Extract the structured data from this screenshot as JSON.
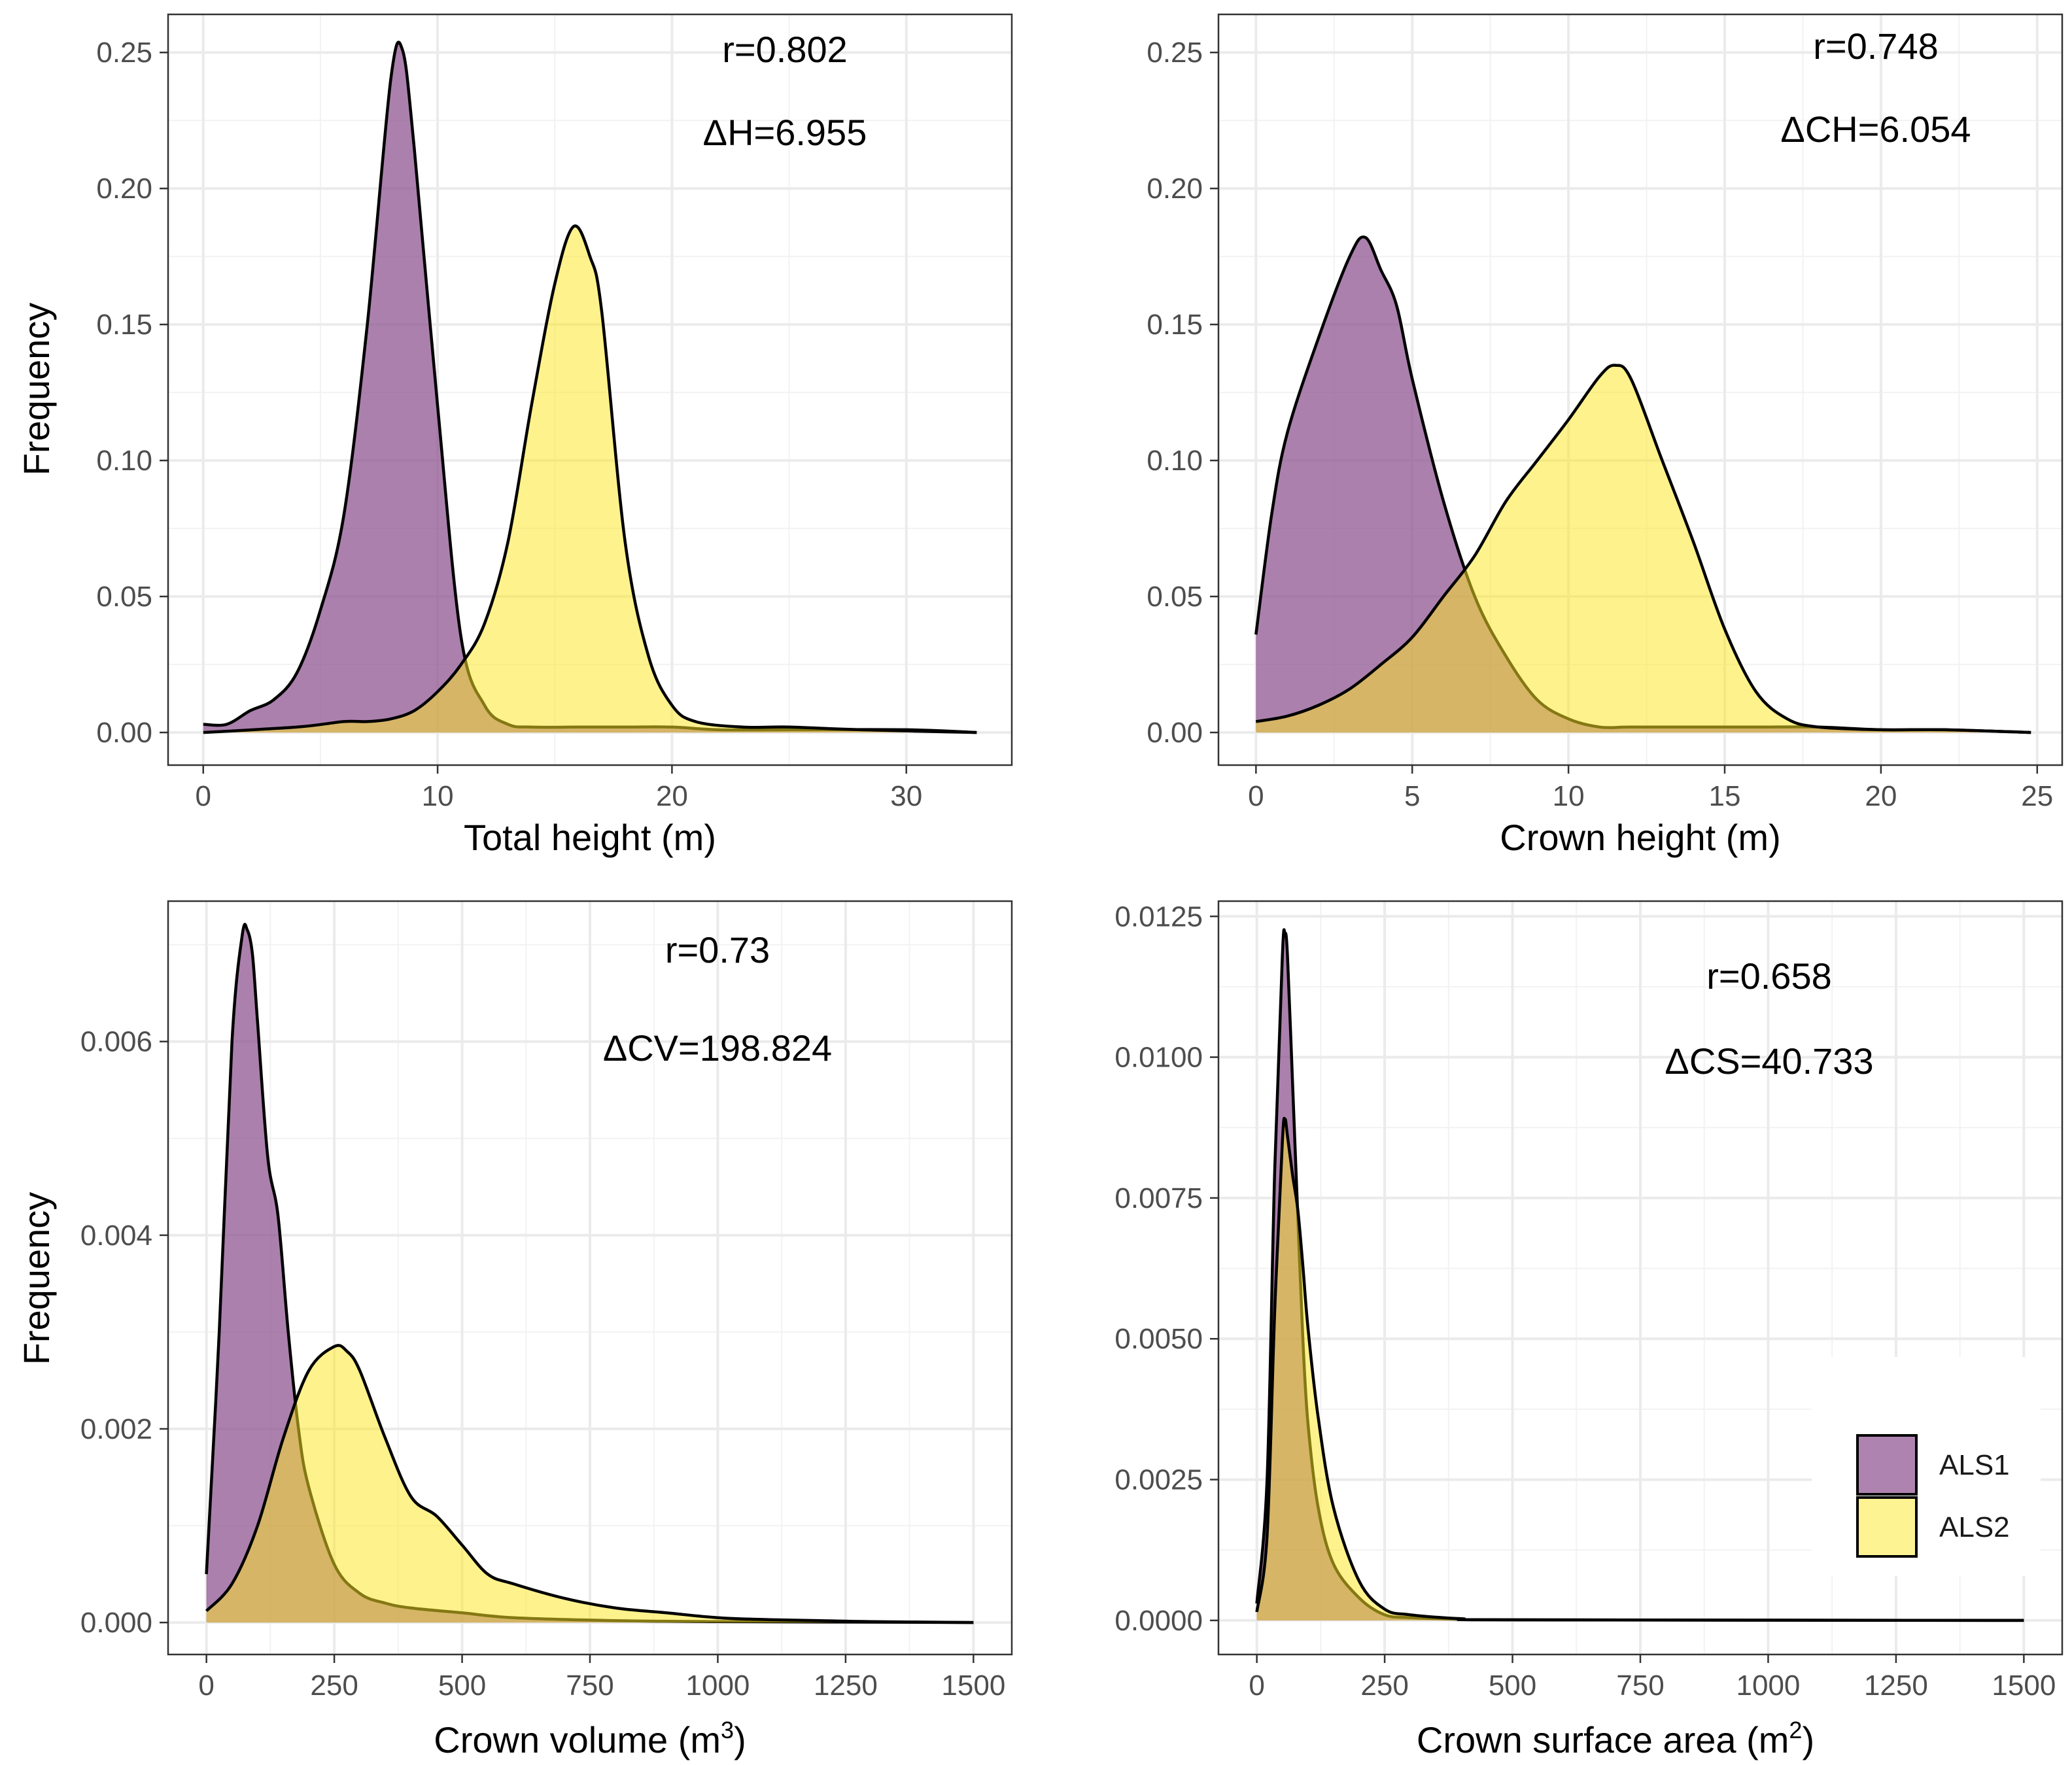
{
  "figure": {
    "legend": {
      "entries": [
        {
          "label": "ALS1",
          "color": "#8B4F8E"
        },
        {
          "label": "ALS2",
          "color": "#FDE725"
        }
      ]
    }
  },
  "chart_data": [
    {
      "type": "area",
      "name": "total-height",
      "xlabel": "Total height (m)",
      "ylabel": "Frequency",
      "xlim": [
        -1.5,
        34.5
      ],
      "ylim": [
        -0.012,
        0.264
      ],
      "xticks": [
        0,
        10,
        20,
        30
      ],
      "xtick_labels": [
        "0",
        "10",
        "20",
        "30"
      ],
      "yticks": [
        0,
        0.05,
        0.1,
        0.15,
        0.2,
        0.25
      ],
      "ytick_labels": [
        "0.00",
        "0.05",
        "0.10",
        "0.15",
        "0.20",
        "0.25"
      ],
      "annotations": [
        "r=0.802",
        "ΔH=6.955"
      ],
      "series": [
        {
          "name": "ALS1",
          "x": [
            0,
            1,
            2,
            3,
            4,
            5,
            6,
            7,
            8,
            8.5,
            9,
            10,
            11,
            12,
            13,
            14,
            16,
            18,
            20,
            22,
            25,
            30,
            33
          ],
          "y": [
            0.003,
            0.003,
            0.008,
            0.012,
            0.022,
            0.045,
            0.08,
            0.15,
            0.24,
            0.251,
            0.215,
            0.12,
            0.035,
            0.01,
            0.003,
            0.002,
            0.002,
            0.002,
            0.002,
            0.001,
            0.001,
            0.001,
            0
          ]
        },
        {
          "name": "ALS2",
          "x": [
            0,
            4,
            6,
            7,
            8,
            9,
            10,
            11,
            12,
            13,
            14,
            15,
            15.8,
            16.5,
            17,
            18,
            19,
            20,
            21,
            23,
            25,
            28,
            33
          ],
          "y": [
            0,
            0.002,
            0.004,
            0.004,
            0.005,
            0.008,
            0.015,
            0.025,
            0.04,
            0.07,
            0.12,
            0.165,
            0.186,
            0.175,
            0.155,
            0.07,
            0.028,
            0.01,
            0.004,
            0.002,
            0.002,
            0.001,
            0
          ]
        }
      ]
    },
    {
      "type": "area",
      "name": "crown-height",
      "xlabel": "Crown height (m)",
      "ylabel": "",
      "xlim": [
        -1.2,
        25.8
      ],
      "ylim": [
        -0.012,
        0.264
      ],
      "xticks": [
        0,
        5,
        10,
        15,
        20,
        25
      ],
      "xtick_labels": [
        "0",
        "5",
        "10",
        "15",
        "20",
        "25"
      ],
      "yticks": [
        0,
        0.05,
        0.1,
        0.15,
        0.2,
        0.25
      ],
      "ytick_labels": [
        "0.00",
        "0.05",
        "0.10",
        "0.15",
        "0.20",
        "0.25"
      ],
      "annotations": [
        "r=0.748",
        "ΔCH=6.054"
      ],
      "series": [
        {
          "name": "ALS1",
          "x": [
            0,
            0.5,
            1,
            2,
            3,
            3.5,
            4,
            4.5,
            5,
            6,
            7,
            8,
            9,
            10,
            11,
            12,
            14,
            16,
            18,
            20,
            22,
            24.8
          ],
          "y": [
            0.036,
            0.08,
            0.11,
            0.145,
            0.175,
            0.182,
            0.17,
            0.157,
            0.13,
            0.085,
            0.05,
            0.028,
            0.012,
            0.005,
            0.002,
            0.002,
            0.002,
            0.002,
            0.002,
            0.001,
            0.001,
            0
          ]
        },
        {
          "name": "ALS2",
          "x": [
            0,
            1,
            2,
            3,
            4,
            5,
            6,
            7,
            8,
            9,
            10,
            11,
            11.5,
            12,
            13,
            14,
            15,
            16,
            17,
            18,
            20,
            22,
            24.8
          ],
          "y": [
            0.004,
            0.006,
            0.01,
            0.016,
            0.025,
            0.035,
            0.05,
            0.065,
            0.085,
            0.1,
            0.115,
            0.131,
            0.135,
            0.13,
            0.1,
            0.07,
            0.038,
            0.015,
            0.005,
            0.002,
            0.001,
            0.001,
            0
          ]
        }
      ]
    },
    {
      "type": "area",
      "name": "crown-volume",
      "xlabel": "Crown volume (m",
      "xlabel_sup": "3",
      "xlabel_end": ")",
      "ylabel": "Frequency",
      "xlim": [
        -75,
        1575
      ],
      "ylim": [
        -0.00033,
        0.00745
      ],
      "xticks": [
        0,
        250,
        500,
        750,
        1000,
        1250,
        1500
      ],
      "xtick_labels": [
        "0",
        "250",
        "500",
        "750",
        "1000",
        "1250",
        "1500"
      ],
      "yticks": [
        0,
        0.002,
        0.004,
        0.006
      ],
      "ytick_labels": [
        "0.000",
        "0.002",
        "0.004",
        "0.006"
      ],
      "annotations": [
        "r=0.73",
        "ΔCV=198.824"
      ],
      "series": [
        {
          "name": "ALS1",
          "x": [
            0,
            25,
            50,
            70,
            80,
            90,
            100,
            120,
            140,
            160,
            180,
            200,
            250,
            300,
            350,
            400,
            500,
            600,
            800,
            1000,
            1500
          ],
          "y": [
            0.0005,
            0.003,
            0.006,
            0.0071,
            0.00715,
            0.0069,
            0.0062,
            0.0048,
            0.0042,
            0.003,
            0.002,
            0.0014,
            0.0006,
            0.0003,
            0.0002,
            0.00015,
            0.0001,
            5e-05,
            2e-05,
            1e-05,
            0
          ]
        },
        {
          "name": "ALS2",
          "x": [
            0,
            50,
            100,
            150,
            200,
            250,
            275,
            300,
            350,
            400,
            450,
            500,
            550,
            600,
            700,
            800,
            900,
            1000,
            1100,
            1200,
            1300,
            1500
          ],
          "y": [
            0.00012,
            0.0004,
            0.001,
            0.0019,
            0.0026,
            0.00285,
            0.0028,
            0.0026,
            0.0019,
            0.0013,
            0.0011,
            0.0008,
            0.0005,
            0.0004,
            0.00025,
            0.00015,
            0.0001,
            5e-05,
            3e-05,
            2e-05,
            1e-05,
            0
          ]
        }
      ]
    },
    {
      "type": "area",
      "name": "crown-surface-area",
      "xlabel": "Crown surface area (m",
      "xlabel_sup": "2",
      "xlabel_end": ")",
      "ylabel": "",
      "xlim": [
        -75,
        1575
      ],
      "ylim": [
        -0.000605,
        0.01277
      ],
      "xticks": [
        0,
        250,
        500,
        750,
        1000,
        1250,
        1500
      ],
      "xtick_labels": [
        "0",
        "250",
        "500",
        "750",
        "1000",
        "1250",
        "1500"
      ],
      "yticks": [
        0,
        0.0025,
        0.005,
        0.0075,
        0.01,
        0.0125
      ],
      "ytick_labels": [
        "0.0000",
        "0.0025",
        "0.0050",
        "0.0075",
        "0.0100",
        "0.0125"
      ],
      "annotations": [
        "r=0.658",
        "ΔCS=40.733"
      ],
      "series": [
        {
          "name": "ALS1",
          "x": [
            0,
            20,
            35,
            50,
            55,
            60,
            70,
            80,
            90,
            100,
            120,
            150,
            200,
            250,
            300,
            400,
            500,
            1500
          ],
          "y": [
            0.0003,
            0.0025,
            0.008,
            0.0118,
            0.0122,
            0.0118,
            0.0095,
            0.0072,
            0.005,
            0.0035,
            0.002,
            0.001,
            0.0004,
            0.0001,
            5e-05,
            2e-05,
            1e-05,
            0
          ]
        },
        {
          "name": "ALS2",
          "x": [
            0,
            20,
            35,
            50,
            55,
            60,
            70,
            80,
            90,
            100,
            120,
            150,
            200,
            250,
            300,
            400,
            500,
            1500
          ],
          "y": [
            0.00015,
            0.0015,
            0.0055,
            0.0085,
            0.0089,
            0.0086,
            0.0079,
            0.0073,
            0.0063,
            0.0052,
            0.0036,
            0.002,
            0.0007,
            0.0002,
            0.0001,
            3e-05,
            1e-05,
            0
          ]
        }
      ]
    }
  ]
}
